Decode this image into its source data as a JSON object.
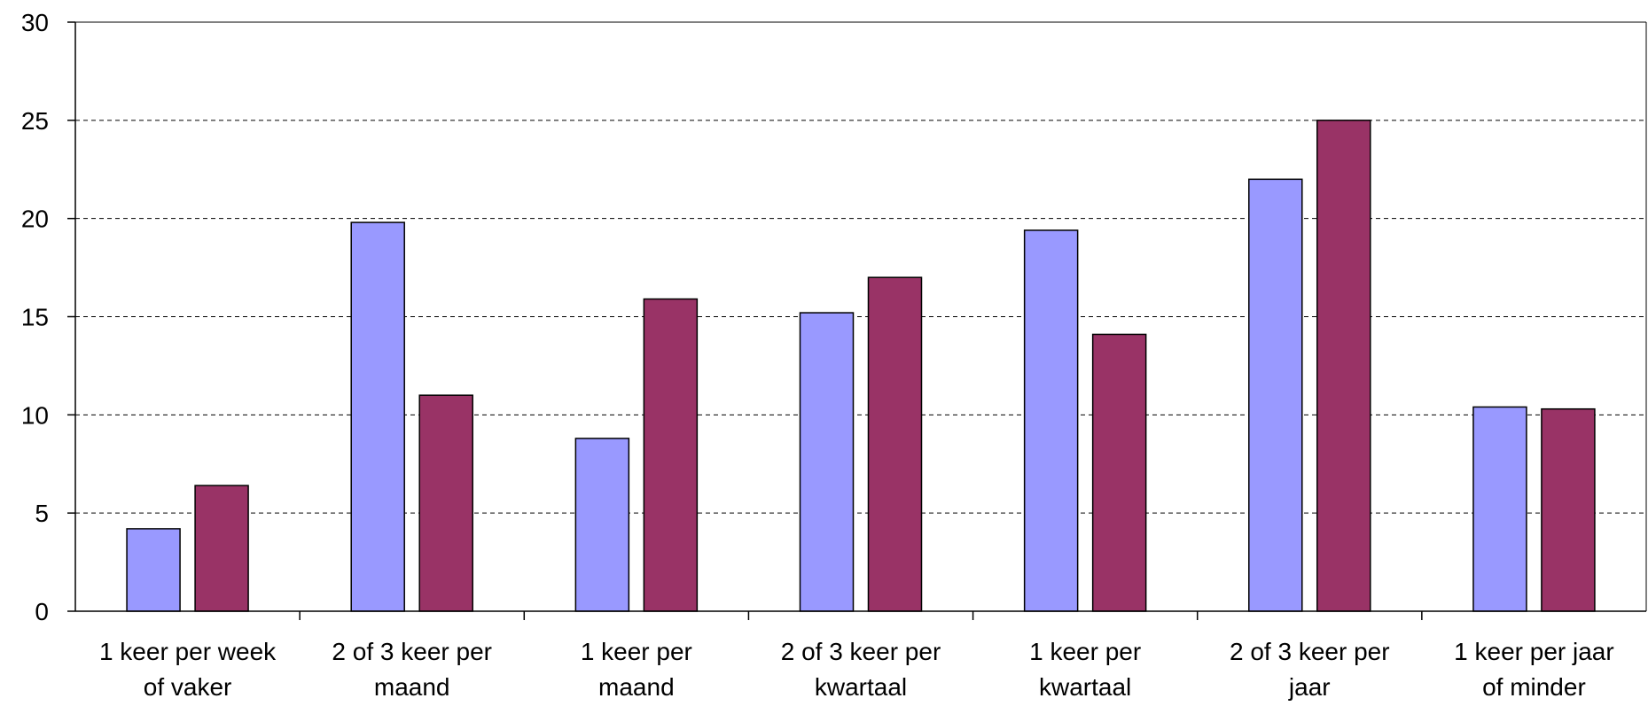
{
  "chart_data": {
    "type": "bar",
    "title": "",
    "xlabel": "",
    "ylabel": "",
    "ylim": [
      0,
      30
    ],
    "yticks": [
      0,
      5,
      10,
      15,
      20,
      25,
      30
    ],
    "grid": "horizontal dashed",
    "legend": "none",
    "categories": [
      [
        "1 keer per week",
        "of vaker"
      ],
      [
        "2 of 3 keer per",
        "maand"
      ],
      [
        "1 keer per",
        "maand"
      ],
      [
        "2 of 3 keer per",
        "kwartaal"
      ],
      [
        "1 keer per",
        "kwartaal"
      ],
      [
        "2 of 3 keer per",
        "jaar"
      ],
      [
        "1 keer per jaar",
        "of minder"
      ]
    ],
    "series": [
      {
        "color": "#9999ff",
        "values": [
          4.2,
          19.8,
          8.8,
          15.2,
          19.4,
          22.0,
          10.4
        ]
      },
      {
        "color": "#993366",
        "values": [
          6.4,
          11.0,
          15.9,
          17.0,
          14.1,
          25.0,
          10.3
        ]
      }
    ]
  }
}
